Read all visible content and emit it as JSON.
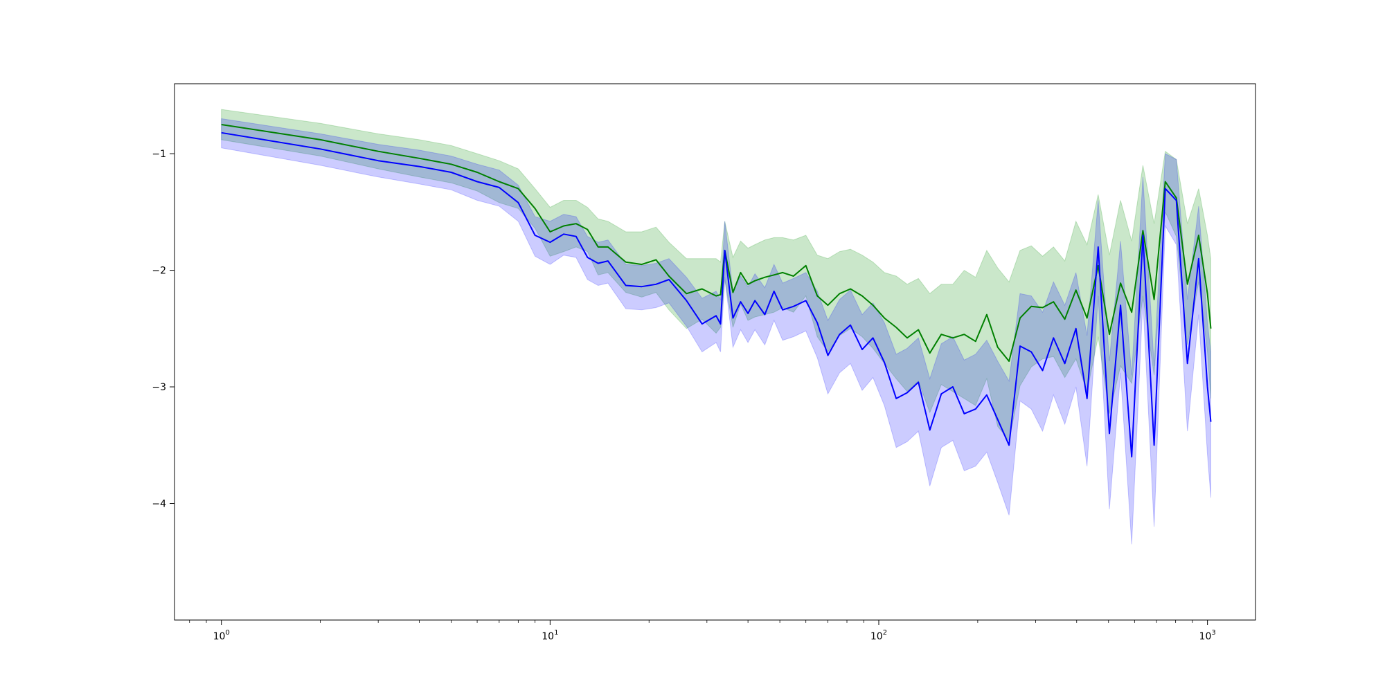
{
  "chart_data": {
    "type": "line",
    "title": "",
    "xlabel": "",
    "ylabel": "",
    "xscale": "log",
    "xlim": [
      0.72,
      1400
    ],
    "ylim": [
      -5.0,
      -0.4
    ],
    "grid": false,
    "legend": "none",
    "x_ticks": [
      {
        "value": 1,
        "base": "10",
        "exp": "0"
      },
      {
        "value": 10,
        "base": "10",
        "exp": "1"
      },
      {
        "value": 100,
        "base": "10",
        "exp": "2"
      },
      {
        "value": 1000,
        "base": "10",
        "exp": "3"
      }
    ],
    "y_ticks": [
      {
        "value": -1,
        "label": "−1"
      },
      {
        "value": -2,
        "label": "−2"
      },
      {
        "value": -3,
        "label": "−3"
      },
      {
        "value": -4,
        "label": "−4"
      }
    ],
    "x": [
      1,
      2,
      3,
      4,
      5,
      6,
      7,
      8,
      9,
      10,
      11,
      12,
      13,
      14,
      15,
      17,
      19,
      21,
      23,
      26,
      29,
      32,
      33,
      34,
      36,
      38,
      40,
      42,
      45,
      48,
      51,
      55,
      60,
      65,
      70,
      76,
      82,
      89,
      96,
      104,
      113,
      122,
      132,
      143,
      155,
      168,
      182,
      197,
      213,
      230,
      249,
      269,
      291,
      315,
      340,
      368,
      398,
      430,
      465,
      503,
      544,
      588,
      636,
      688,
      744,
      804,
      869,
      940,
      1000,
      1024
    ],
    "series": [
      {
        "color": "#008000",
        "band_color": "#2ca02c",
        "band_opacity": 0.25,
        "values": [
          -0.75,
          -0.88,
          -0.98,
          -1.04,
          -1.09,
          -1.16,
          -1.24,
          -1.3,
          -1.47,
          -1.67,
          -1.62,
          -1.6,
          -1.65,
          -1.8,
          -1.8,
          -1.93,
          -1.95,
          -1.91,
          -2.05,
          -2.2,
          -2.16,
          -2.22,
          -2.21,
          -1.83,
          -2.19,
          -2.02,
          -2.12,
          -2.09,
          -2.06,
          -2.04,
          -2.02,
          -2.05,
          -1.96,
          -2.22,
          -2.3,
          -2.2,
          -2.16,
          -2.22,
          -2.3,
          -2.41,
          -2.49,
          -2.58,
          -2.51,
          -2.71,
          -2.55,
          -2.58,
          -2.55,
          -2.61,
          -2.38,
          -2.66,
          -2.78,
          -2.41,
          -2.31,
          -2.32,
          -2.27,
          -2.42,
          -2.17,
          -2.41,
          -1.96,
          -2.55,
          -2.11,
          -2.36,
          -1.66,
          -2.25,
          -1.24,
          -1.38,
          -2.12,
          -1.7,
          -2.2,
          -2.5
        ],
        "upper": [
          -0.62,
          -0.74,
          -0.83,
          -0.88,
          -0.93,
          -1.0,
          -1.06,
          -1.13,
          -1.3,
          -1.46,
          -1.4,
          -1.4,
          -1.46,
          -1.56,
          -1.58,
          -1.67,
          -1.67,
          -1.63,
          -1.76,
          -1.9,
          -1.9,
          -1.9,
          -1.93,
          -1.58,
          -1.89,
          -1.75,
          -1.81,
          -1.78,
          -1.74,
          -1.72,
          -1.72,
          -1.74,
          -1.7,
          -1.87,
          -1.9,
          -1.84,
          -1.82,
          -1.87,
          -1.93,
          -2.02,
          -2.05,
          -2.12,
          -2.07,
          -2.2,
          -2.12,
          -2.12,
          -2.0,
          -2.06,
          -1.83,
          -1.98,
          -2.1,
          -1.83,
          -1.79,
          -1.88,
          -1.8,
          -1.92,
          -1.58,
          -1.78,
          -1.35,
          -1.87,
          -1.4,
          -1.75,
          -1.1,
          -1.6,
          -0.98,
          -1.05,
          -1.6,
          -1.3,
          -1.7,
          -1.9
        ],
        "lower": [
          -0.88,
          -1.02,
          -1.13,
          -1.2,
          -1.25,
          -1.32,
          -1.42,
          -1.47,
          -1.64,
          -1.88,
          -1.84,
          -1.8,
          -1.84,
          -2.04,
          -2.02,
          -2.19,
          -2.23,
          -2.19,
          -2.34,
          -2.5,
          -2.42,
          -2.54,
          -2.49,
          -2.08,
          -2.49,
          -2.29,
          -2.43,
          -2.4,
          -2.38,
          -2.36,
          -2.32,
          -2.36,
          -2.22,
          -2.57,
          -2.7,
          -2.56,
          -2.5,
          -2.57,
          -2.67,
          -2.8,
          -2.93,
          -3.04,
          -2.95,
          -3.22,
          -2.98,
          -3.04,
          -3.1,
          -3.16,
          -2.93,
          -3.34,
          -3.46,
          -2.99,
          -2.83,
          -2.76,
          -2.74,
          -2.92,
          -2.76,
          -3.04,
          -2.57,
          -3.23,
          -2.82,
          -2.97,
          -2.22,
          -2.9,
          -1.5,
          -1.71,
          -2.64,
          -2.1,
          -2.7,
          -3.1
        ]
      },
      {
        "color": "#0000ff",
        "band_color": "#0000ff",
        "band_opacity": 0.2,
        "values": [
          -0.82,
          -0.96,
          -1.06,
          -1.11,
          -1.16,
          -1.24,
          -1.29,
          -1.42,
          -1.7,
          -1.76,
          -1.69,
          -1.71,
          -1.89,
          -1.94,
          -1.92,
          -2.13,
          -2.14,
          -2.12,
          -2.08,
          -2.26,
          -2.46,
          -2.39,
          -2.46,
          -1.83,
          -2.41,
          -2.27,
          -2.37,
          -2.26,
          -2.38,
          -2.18,
          -2.34,
          -2.31,
          -2.26,
          -2.45,
          -2.73,
          -2.55,
          -2.47,
          -2.68,
          -2.58,
          -2.79,
          -3.1,
          -3.05,
          -2.96,
          -3.37,
          -3.06,
          -3.0,
          -3.23,
          -3.19,
          -3.07,
          -3.28,
          -3.5,
          -2.65,
          -2.7,
          -2.86,
          -2.58,
          -2.8,
          -2.5,
          -3.1,
          -1.8,
          -3.4,
          -2.3,
          -3.6,
          -1.7,
          -3.5,
          -1.3,
          -1.4,
          -2.8,
          -1.9,
          -3.0,
          -3.3
        ],
        "upper": [
          -0.7,
          -0.83,
          -0.92,
          -0.97,
          -1.02,
          -1.09,
          -1.14,
          -1.27,
          -1.54,
          -1.58,
          -1.52,
          -1.54,
          -1.71,
          -1.76,
          -1.74,
          -1.95,
          -1.96,
          -1.94,
          -1.9,
          -2.06,
          -2.24,
          -2.18,
          -2.25,
          -1.58,
          -2.18,
          -2.05,
          -2.14,
          -2.03,
          -2.15,
          -1.95,
          -2.11,
          -2.07,
          -2.02,
          -2.18,
          -2.43,
          -2.25,
          -2.17,
          -2.38,
          -2.28,
          -2.45,
          -2.72,
          -2.67,
          -2.58,
          -2.93,
          -2.63,
          -2.57,
          -2.77,
          -2.72,
          -2.6,
          -2.78,
          -2.95,
          -2.2,
          -2.22,
          -2.36,
          -2.1,
          -2.3,
          -2.02,
          -2.56,
          -1.4,
          -2.78,
          -1.75,
          -2.9,
          -1.2,
          -2.82,
          -1.0,
          -1.05,
          -2.25,
          -1.45,
          -2.45,
          -2.7
        ],
        "lower": [
          -0.95,
          -1.1,
          -1.2,
          -1.26,
          -1.31,
          -1.4,
          -1.45,
          -1.58,
          -1.88,
          -1.95,
          -1.87,
          -1.89,
          -2.08,
          -2.13,
          -2.11,
          -2.33,
          -2.34,
          -2.32,
          -2.28,
          -2.48,
          -2.7,
          -2.62,
          -2.7,
          -2.06,
          -2.66,
          -2.51,
          -2.62,
          -2.51,
          -2.64,
          -2.43,
          -2.6,
          -2.57,
          -2.52,
          -2.75,
          -3.06,
          -2.88,
          -2.8,
          -3.03,
          -2.92,
          -3.16,
          -3.52,
          -3.47,
          -3.38,
          -3.85,
          -3.52,
          -3.46,
          -3.72,
          -3.68,
          -3.56,
          -3.82,
          -4.1,
          -3.12,
          -3.19,
          -3.38,
          -3.07,
          -3.32,
          -3.0,
          -3.68,
          -2.22,
          -4.05,
          -2.88,
          -4.35,
          -2.25,
          -4.2,
          -1.62,
          -1.78,
          -3.38,
          -2.38,
          -3.58,
          -3.95
        ]
      }
    ]
  }
}
